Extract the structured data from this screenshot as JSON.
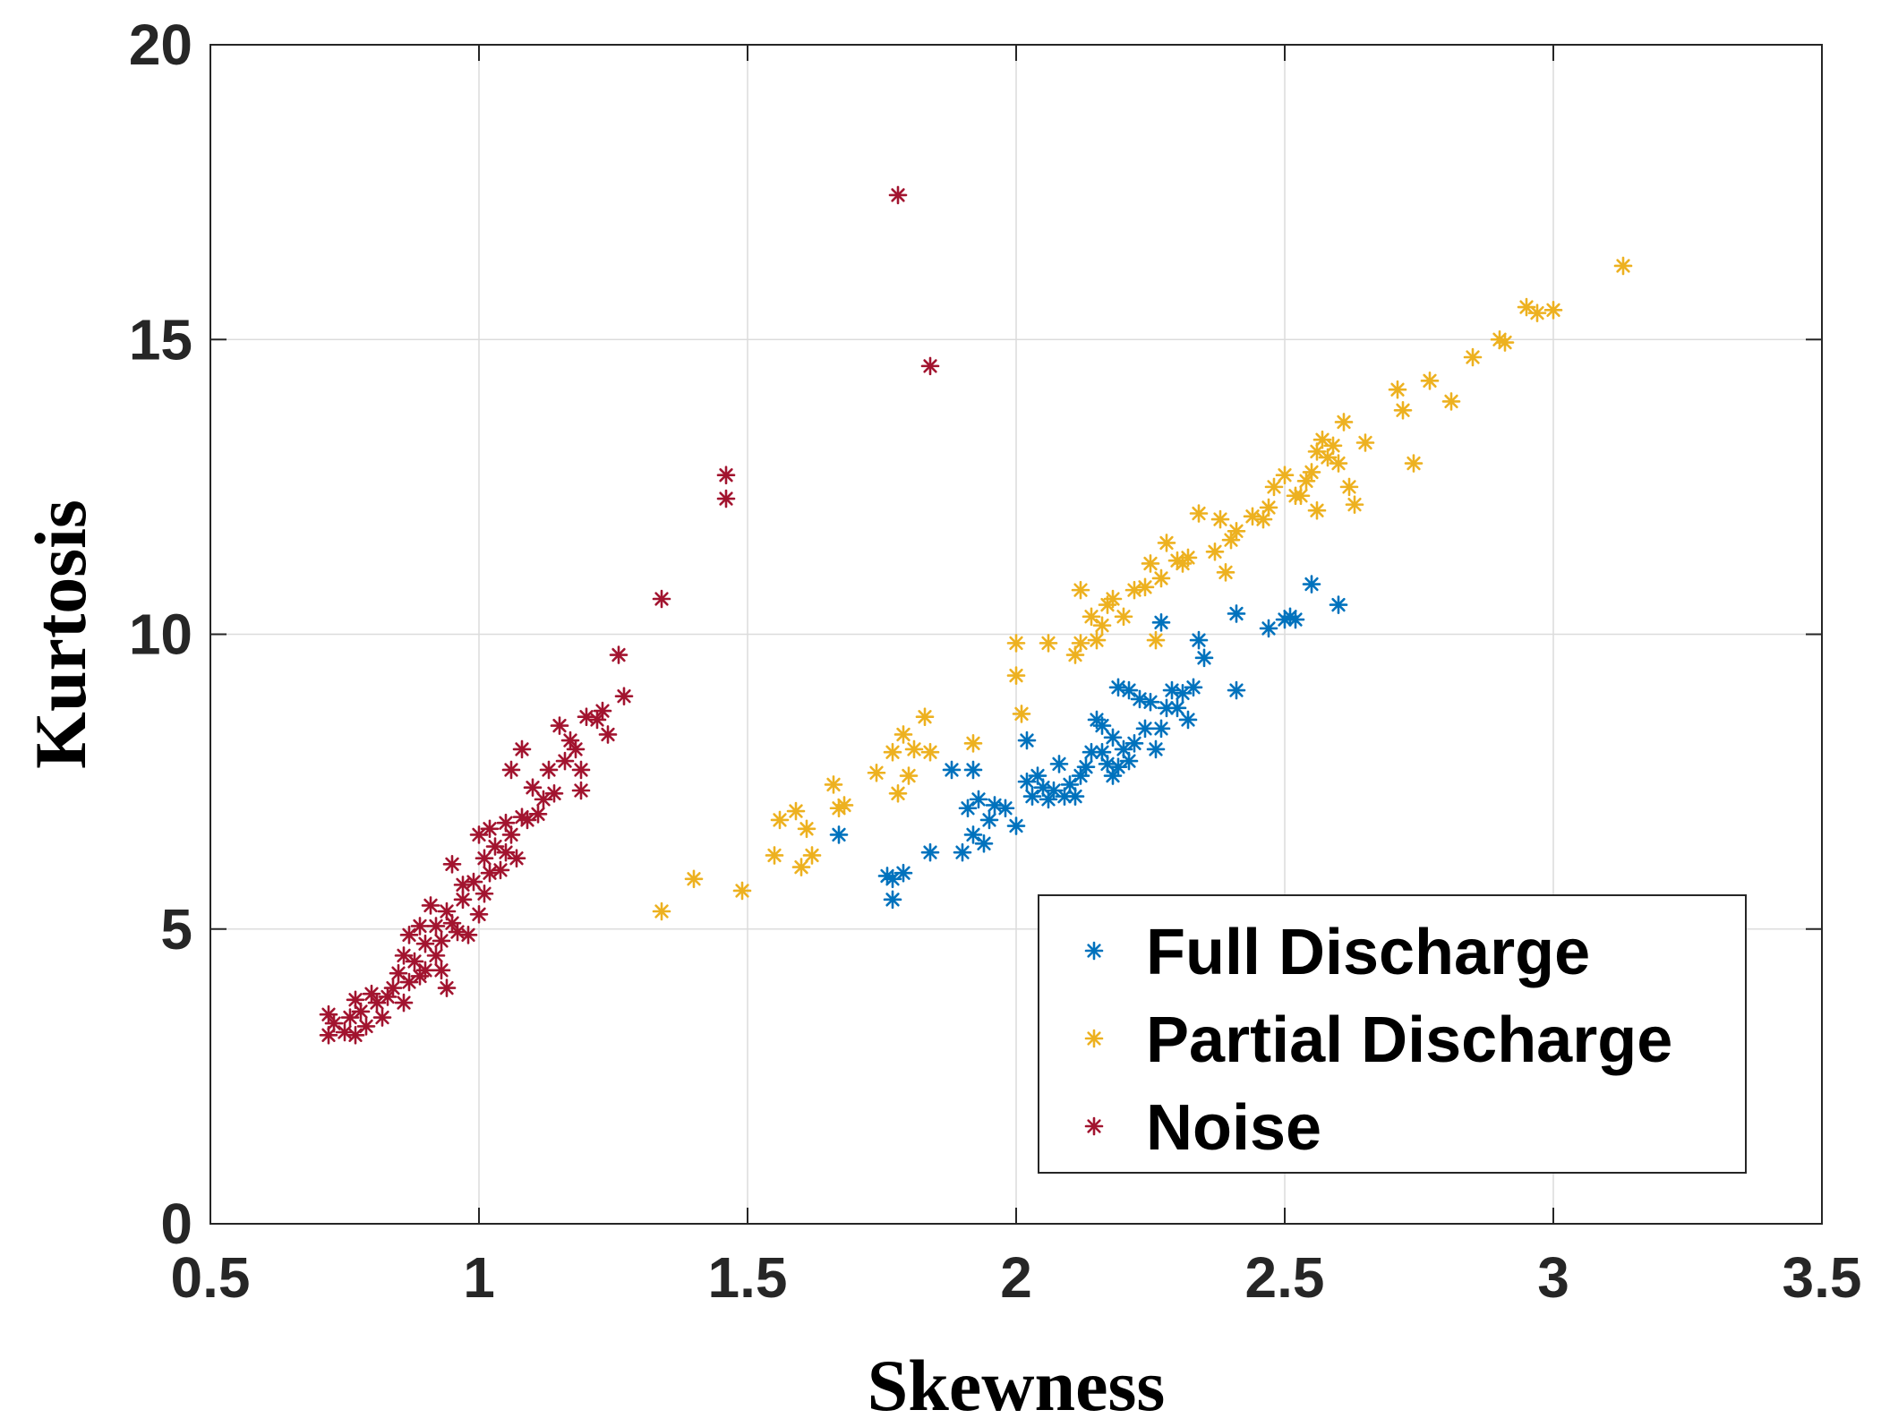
{
  "chart_data": {
    "type": "scatter",
    "title": "",
    "xlabel": "Skewness",
    "ylabel": "Kurtosis",
    "xlim": [
      0.5,
      3.5
    ],
    "ylim": [
      0,
      20
    ],
    "xticks": [
      0.5,
      1,
      1.5,
      2,
      2.5,
      3,
      3.5
    ],
    "xtick_labels": [
      "0.5",
      "1",
      "1.5",
      "2",
      "2.5",
      "3",
      "3.5"
    ],
    "yticks": [
      0,
      5,
      10,
      15,
      20
    ],
    "ytick_labels": [
      "0",
      "5",
      "10",
      "15",
      "20"
    ],
    "grid": true,
    "marker": "*",
    "legend_position": "bottom-right",
    "series": [
      {
        "name": "Full Discharge",
        "color": "#0072BD",
        "points": [
          [
            1.67,
            6.6
          ],
          [
            1.76,
            5.9
          ],
          [
            1.77,
            5.5
          ],
          [
            1.77,
            5.85
          ],
          [
            1.79,
            5.95
          ],
          [
            1.84,
            6.3
          ],
          [
            1.88,
            7.7
          ],
          [
            1.9,
            6.3
          ],
          [
            1.91,
            7.05
          ],
          [
            1.92,
            7.7
          ],
          [
            1.92,
            6.6
          ],
          [
            1.93,
            7.2
          ],
          [
            1.94,
            6.45
          ],
          [
            1.95,
            6.85
          ],
          [
            1.96,
            7.1
          ],
          [
            1.98,
            7.05
          ],
          [
            2.0,
            6.75
          ],
          [
            2.02,
            7.5
          ],
          [
            2.02,
            8.2
          ],
          [
            2.03,
            7.25
          ],
          [
            2.04,
            7.6
          ],
          [
            2.05,
            7.4
          ],
          [
            2.06,
            7.2
          ],
          [
            2.07,
            7.35
          ],
          [
            2.08,
            7.8
          ],
          [
            2.09,
            7.25
          ],
          [
            2.1,
            7.45
          ],
          [
            2.11,
            7.25
          ],
          [
            2.12,
            7.6
          ],
          [
            2.13,
            7.75
          ],
          [
            2.14,
            8.0
          ],
          [
            2.15,
            8.55
          ],
          [
            2.16,
            8.0
          ],
          [
            2.16,
            8.45
          ],
          [
            2.17,
            7.8
          ],
          [
            2.18,
            7.6
          ],
          [
            2.18,
            8.25
          ],
          [
            2.19,
            9.1
          ],
          [
            2.19,
            7.75
          ],
          [
            2.2,
            8.05
          ],
          [
            2.21,
            7.85
          ],
          [
            2.21,
            9.05
          ],
          [
            2.22,
            8.15
          ],
          [
            2.23,
            8.9
          ],
          [
            2.24,
            8.4
          ],
          [
            2.25,
            8.85
          ],
          [
            2.26,
            8.05
          ],
          [
            2.27,
            10.2
          ],
          [
            2.27,
            8.4
          ],
          [
            2.28,
            8.75
          ],
          [
            2.29,
            9.05
          ],
          [
            2.3,
            8.75
          ],
          [
            2.31,
            9.0
          ],
          [
            2.32,
            8.55
          ],
          [
            2.33,
            9.1
          ],
          [
            2.34,
            9.9
          ],
          [
            2.35,
            9.6
          ],
          [
            2.41,
            10.35
          ],
          [
            2.41,
            9.05
          ],
          [
            2.47,
            10.1
          ],
          [
            2.5,
            10.25
          ],
          [
            2.51,
            10.3
          ],
          [
            2.52,
            10.25
          ],
          [
            2.55,
            10.85
          ],
          [
            2.6,
            10.5
          ]
        ]
      },
      {
        "name": "Partial Discharge",
        "color": "#EDB120",
        "points": [
          [
            1.34,
            5.3
          ],
          [
            1.4,
            5.85
          ],
          [
            1.49,
            5.65
          ],
          [
            1.55,
            6.25
          ],
          [
            1.56,
            6.85
          ],
          [
            1.59,
            7.0
          ],
          [
            1.6,
            6.05
          ],
          [
            1.61,
            6.7
          ],
          [
            1.62,
            6.25
          ],
          [
            1.66,
            7.45
          ],
          [
            1.67,
            7.05
          ],
          [
            1.68,
            7.1
          ],
          [
            1.74,
            7.65
          ],
          [
            1.77,
            8.0
          ],
          [
            1.78,
            7.3
          ],
          [
            1.79,
            8.3
          ],
          [
            1.8,
            7.6
          ],
          [
            1.81,
            8.05
          ],
          [
            1.83,
            8.6
          ],
          [
            1.84,
            8.0
          ],
          [
            1.92,
            8.15
          ],
          [
            2.0,
            9.85
          ],
          [
            2.0,
            9.3
          ],
          [
            2.01,
            8.65
          ],
          [
            2.06,
            9.85
          ],
          [
            2.11,
            9.65
          ],
          [
            2.12,
            9.85
          ],
          [
            2.12,
            10.75
          ],
          [
            2.14,
            10.3
          ],
          [
            2.15,
            9.9
          ],
          [
            2.16,
            10.15
          ],
          [
            2.17,
            10.5
          ],
          [
            2.18,
            10.6
          ],
          [
            2.2,
            10.3
          ],
          [
            2.22,
            10.75
          ],
          [
            2.24,
            10.8
          ],
          [
            2.25,
            11.2
          ],
          [
            2.26,
            9.9
          ],
          [
            2.27,
            10.95
          ],
          [
            2.28,
            11.55
          ],
          [
            2.3,
            11.25
          ],
          [
            2.31,
            11.2
          ],
          [
            2.32,
            11.3
          ],
          [
            2.34,
            12.05
          ],
          [
            2.37,
            11.4
          ],
          [
            2.38,
            11.95
          ],
          [
            2.39,
            11.05
          ],
          [
            2.4,
            11.6
          ],
          [
            2.41,
            11.75
          ],
          [
            2.44,
            12.0
          ],
          [
            2.46,
            11.95
          ],
          [
            2.47,
            12.15
          ],
          [
            2.48,
            12.5
          ],
          [
            2.5,
            12.7
          ],
          [
            2.52,
            12.35
          ],
          [
            2.53,
            12.35
          ],
          [
            2.54,
            12.6
          ],
          [
            2.55,
            12.75
          ],
          [
            2.56,
            12.1
          ],
          [
            2.56,
            13.1
          ],
          [
            2.57,
            13.3
          ],
          [
            2.58,
            13.0
          ],
          [
            2.59,
            13.2
          ],
          [
            2.6,
            12.9
          ],
          [
            2.61,
            13.6
          ],
          [
            2.62,
            12.5
          ],
          [
            2.63,
            12.2
          ],
          [
            2.65,
            13.25
          ],
          [
            2.71,
            14.15
          ],
          [
            2.72,
            13.8
          ],
          [
            2.74,
            12.9
          ],
          [
            2.77,
            14.3
          ],
          [
            2.81,
            13.95
          ],
          [
            2.85,
            14.7
          ],
          [
            2.9,
            15.0
          ],
          [
            2.91,
            14.95
          ],
          [
            2.95,
            15.55
          ],
          [
            2.97,
            15.45
          ],
          [
            3.0,
            15.5
          ],
          [
            3.13,
            16.25
          ]
        ]
      },
      {
        "name": "Noise",
        "color": "#A2142F",
        "points": [
          [
            0.72,
            3.2
          ],
          [
            0.72,
            3.55
          ],
          [
            0.73,
            3.4
          ],
          [
            0.75,
            3.25
          ],
          [
            0.76,
            3.5
          ],
          [
            0.77,
            3.8
          ],
          [
            0.77,
            3.2
          ],
          [
            0.78,
            3.6
          ],
          [
            0.79,
            3.35
          ],
          [
            0.8,
            3.9
          ],
          [
            0.81,
            3.75
          ],
          [
            0.82,
            3.5
          ],
          [
            0.83,
            3.85
          ],
          [
            0.84,
            4.0
          ],
          [
            0.85,
            4.25
          ],
          [
            0.86,
            4.55
          ],
          [
            0.86,
            3.75
          ],
          [
            0.87,
            4.1
          ],
          [
            0.87,
            4.9
          ],
          [
            0.88,
            4.45
          ],
          [
            0.89,
            5.05
          ],
          [
            0.89,
            4.2
          ],
          [
            0.9,
            4.75
          ],
          [
            0.9,
            4.3
          ],
          [
            0.91,
            5.4
          ],
          [
            0.92,
            4.55
          ],
          [
            0.92,
            5.05
          ],
          [
            0.93,
            4.3
          ],
          [
            0.93,
            4.8
          ],
          [
            0.94,
            5.3
          ],
          [
            0.94,
            4.0
          ],
          [
            0.95,
            5.1
          ],
          [
            0.95,
            6.1
          ],
          [
            0.96,
            4.95
          ],
          [
            0.97,
            5.5
          ],
          [
            0.97,
            5.75
          ],
          [
            0.98,
            4.9
          ],
          [
            0.99,
            5.8
          ],
          [
            1.0,
            5.25
          ],
          [
            1.0,
            6.6
          ],
          [
            1.01,
            5.6
          ],
          [
            1.01,
            6.2
          ],
          [
            1.02,
            6.7
          ],
          [
            1.02,
            5.95
          ],
          [
            1.03,
            6.4
          ],
          [
            1.04,
            6.0
          ],
          [
            1.05,
            6.3
          ],
          [
            1.05,
            6.8
          ],
          [
            1.06,
            6.6
          ],
          [
            1.06,
            7.7
          ],
          [
            1.07,
            6.2
          ],
          [
            1.08,
            6.9
          ],
          [
            1.08,
            8.05
          ],
          [
            1.09,
            6.85
          ],
          [
            1.1,
            7.4
          ],
          [
            1.11,
            6.95
          ],
          [
            1.12,
            7.2
          ],
          [
            1.13,
            7.7
          ],
          [
            1.14,
            7.3
          ],
          [
            1.15,
            8.45
          ],
          [
            1.16,
            7.85
          ],
          [
            1.17,
            8.2
          ],
          [
            1.18,
            8.05
          ],
          [
            1.19,
            7.7
          ],
          [
            1.19,
            7.35
          ],
          [
            1.2,
            8.6
          ],
          [
            1.22,
            8.55
          ],
          [
            1.23,
            8.7
          ],
          [
            1.24,
            8.3
          ],
          [
            1.26,
            9.65
          ],
          [
            1.27,
            8.95
          ],
          [
            1.34,
            10.6
          ],
          [
            1.46,
            12.7
          ],
          [
            1.46,
            12.3
          ],
          [
            1.78,
            17.45
          ],
          [
            1.84,
            14.55
          ]
        ]
      }
    ]
  }
}
